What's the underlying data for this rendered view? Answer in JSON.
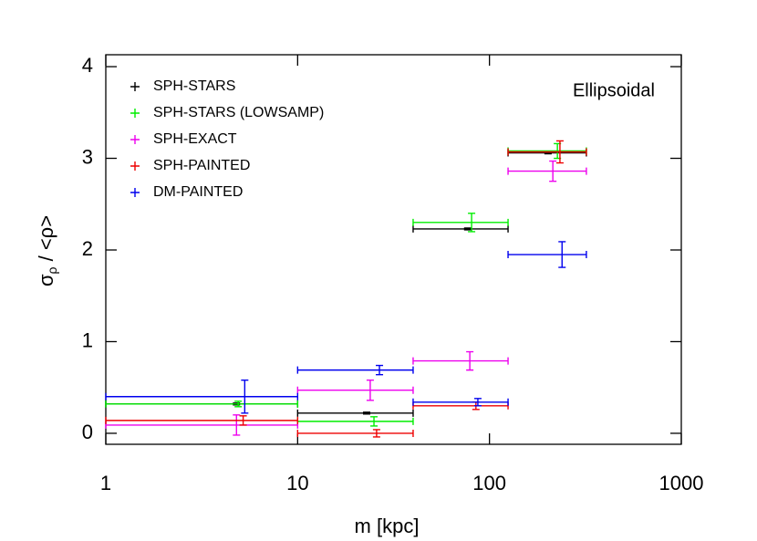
{
  "chart_data": {
    "type": "errorbar",
    "annotation": "Ellipsoidal",
    "xlabel": "m [kpc]",
    "ylabel": [
      "σ",
      "ρ",
      " / <ρ>"
    ],
    "xscale": "log",
    "xlim": [
      1,
      1000
    ],
    "xticks": [
      1,
      10,
      100,
      1000
    ],
    "ylim": [
      -0.12,
      4.13
    ],
    "yticks": [
      0,
      1,
      2,
      3,
      4
    ],
    "legend": "upper left",
    "series": [
      {
        "name": "SPH-STARS",
        "color": "#000000",
        "x": [
          4.8,
          22.9,
          77,
          202
        ],
        "xmin": [
          1,
          10,
          40,
          125
        ],
        "xmax": [
          10,
          40,
          125,
          320
        ],
        "values": [
          0.32,
          0.22,
          2.23,
          3.06
        ],
        "yerr": [
          0.01,
          0.01,
          0.01,
          0.01
        ]
      },
      {
        "name": "SPH-STARS (LOWSAMP)",
        "color": "#00ee00",
        "x": [
          4.9,
          25,
          80.7,
          226
        ],
        "xmin": [
          1,
          10,
          40,
          125
        ],
        "xmax": [
          10,
          40,
          125,
          320
        ],
        "values": [
          0.32,
          0.13,
          2.3,
          3.08
        ],
        "yerr": [
          0.03,
          0.05,
          0.1,
          0.08
        ]
      },
      {
        "name": "SPH-EXACT",
        "color": "#ee00ee",
        "x": [
          4.8,
          23.9,
          79,
          214
        ],
        "xmin": [
          1,
          10,
          40,
          125
        ],
        "xmax": [
          10,
          40,
          125,
          320
        ],
        "values": [
          0.09,
          0.47,
          0.79,
          2.86
        ],
        "yerr": [
          0.11,
          0.11,
          0.1,
          0.11
        ]
      },
      {
        "name": "SPH-PAINTED",
        "color": "#ee0000",
        "x": [
          5.2,
          25.8,
          85,
          233
        ],
        "xmin": [
          1,
          10,
          40,
          125
        ],
        "xmax": [
          10,
          40,
          125,
          320
        ],
        "values": [
          0.14,
          0.0,
          0.3,
          3.07
        ],
        "yerr": [
          0.05,
          0.04,
          0.04,
          0.12
        ]
      },
      {
        "name": "DM-PAINTED",
        "color": "#0000ee",
        "x": [
          5.3,
          26.7,
          87,
          239
        ],
        "xmin": [
          1,
          10,
          40,
          125
        ],
        "xmax": [
          10,
          40,
          125,
          320
        ],
        "values": [
          0.4,
          0.69,
          0.34,
          1.95
        ],
        "yerr": [
          0.18,
          0.05,
          0.04,
          0.14
        ]
      }
    ]
  }
}
